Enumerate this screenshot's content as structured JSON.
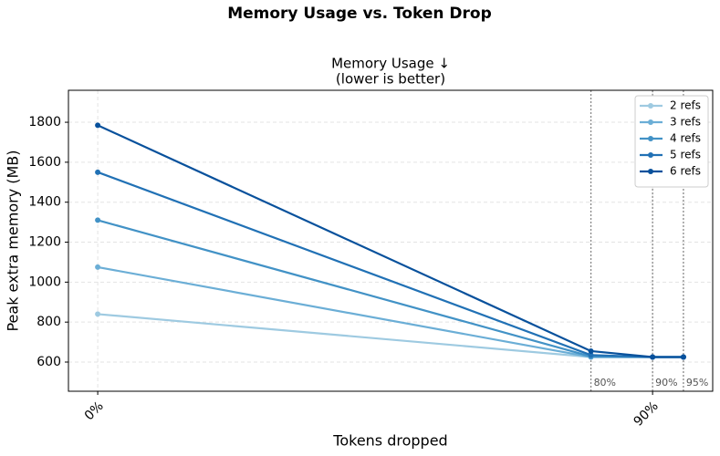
{
  "chart_data": {
    "type": "line",
    "title": "Memory Usage vs. Token Drop",
    "subtitle": [
      "Memory Usage ↓",
      "(lower is better)"
    ],
    "x_label": "Tokens dropped",
    "y_label": "Peak extra memory (MB)",
    "x": [
      0,
      80,
      90,
      95
    ],
    "series": [
      {
        "name": "2 refs",
        "color": "#9ecae1",
        "values": [
          840,
          625,
          625,
          625
        ]
      },
      {
        "name": "3 refs",
        "color": "#6baed6",
        "values": [
          1075,
          625,
          625,
          625
        ]
      },
      {
        "name": "4 refs",
        "color": "#4292c6",
        "values": [
          1310,
          628,
          625,
          625
        ]
      },
      {
        "name": "5 refs",
        "color": "#2171b5",
        "values": [
          1550,
          635,
          625,
          625
        ]
      },
      {
        "name": "6 refs",
        "color": "#08519c",
        "values": [
          1785,
          655,
          625,
          625
        ]
      }
    ],
    "xlim": [
      -4.75,
      99.75
    ],
    "ylim": [
      454,
      1960
    ],
    "xticks": [
      {
        "value": 0,
        "label": "0%"
      },
      {
        "value": 90,
        "label": "90%"
      }
    ],
    "yticks": [
      600,
      800,
      1000,
      1200,
      1400,
      1600,
      1800
    ],
    "vlines": [
      {
        "value": 80,
        "label": "80%"
      },
      {
        "value": 90,
        "label": "90%"
      },
      {
        "value": 95,
        "label": "95%"
      }
    ],
    "grid": true,
    "legend": "upper-right"
  }
}
